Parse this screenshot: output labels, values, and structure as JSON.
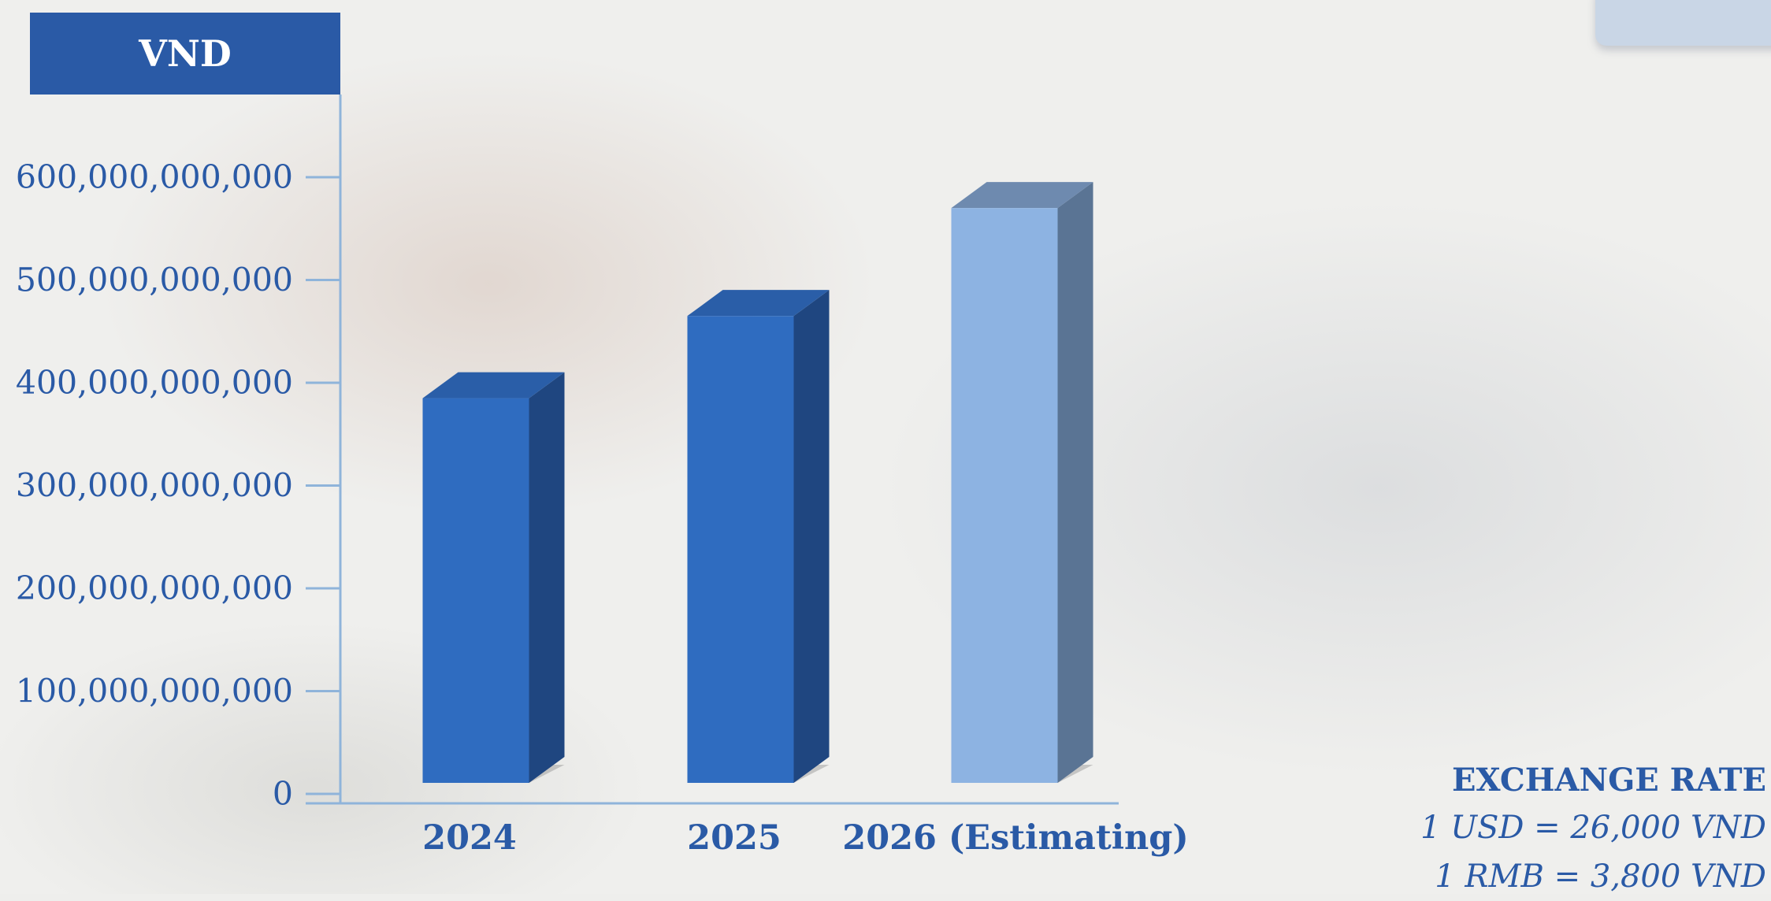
{
  "unit_label": "VND",
  "chart_data": {
    "type": "bar",
    "categories": [
      "2024",
      "2025",
      "2026 (Estimating)"
    ],
    "values": [
      385000000000,
      465000000000,
      570000000000
    ],
    "ylim": [
      0,
      600000000000
    ],
    "yticks": [
      0,
      100000000000,
      200000000000,
      300000000000,
      400000000000,
      500000000000,
      600000000000
    ],
    "ytick_labels": [
      "0",
      "100,000,000,000",
      "200,000,000,000",
      "300,000,000,000",
      "400,000,000,000",
      "500,000,000,000",
      "600,000,000,000"
    ],
    "bar_colors": [
      "#2f6cc0",
      "#2f6cc0",
      "#8db3e2"
    ],
    "bar_side_colors": [
      "#1f4680",
      "#1f4680",
      "#5a7494"
    ],
    "bar_top_colors": [
      "#2a5ea8",
      "#2a5ea8",
      "#6e8aaf"
    ],
    "axis_color": "#8fb4da",
    "grid": false,
    "style": "3d-column"
  },
  "exchange": {
    "title": "EXCHANGE RATE",
    "rates": [
      "1 USD = 26,000 VND",
      "1 RMB = 3,800 VND"
    ]
  }
}
